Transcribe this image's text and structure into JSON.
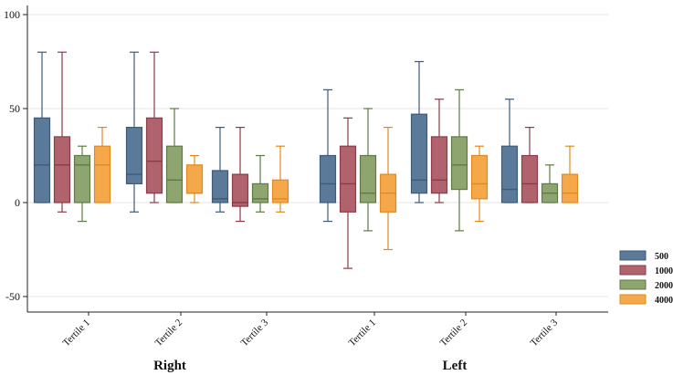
{
  "chart_data": {
    "type": "boxplot",
    "ylim": [
      -60,
      100
    ],
    "yticks": [
      -50,
      0,
      50,
      100
    ],
    "groups": [
      {
        "name": "Right",
        "categories": [
          "Tertile 1",
          "Tertile 2",
          "Tertile 3"
        ]
      },
      {
        "name": "Left",
        "categories": [
          "Tertile 1",
          "Tertile 2",
          "Tertile 3"
        ]
      }
    ],
    "series": [
      {
        "name": "500",
        "color": "#5b7a99",
        "stroke": "#3d5a7a",
        "values": [
          {
            "min": 0,
            "q1": 0,
            "median": 20,
            "q3": 45,
            "max": 80
          },
          {
            "min": -5,
            "q1": 10,
            "median": 15,
            "q3": 40,
            "max": 80
          },
          {
            "min": -5,
            "q1": 0,
            "median": 2,
            "q3": 17,
            "max": 40
          },
          {
            "min": -10,
            "q1": 0,
            "median": 10,
            "q3": 25,
            "max": 60
          },
          {
            "min": 0,
            "q1": 5,
            "median": 12,
            "q3": 47,
            "max": 75
          },
          {
            "min": 0,
            "q1": 0,
            "median": 7,
            "q3": 30,
            "max": 55
          }
        ]
      },
      {
        "name": "1000",
        "color": "#b0636d",
        "stroke": "#8c3b47",
        "values": [
          {
            "min": -5,
            "q1": 0,
            "median": 20,
            "q3": 35,
            "max": 80
          },
          {
            "min": 0,
            "q1": 5,
            "median": 22,
            "q3": 45,
            "max": 80
          },
          {
            "min": -10,
            "q1": -2,
            "median": 0,
            "q3": 15,
            "max": 40
          },
          {
            "min": -35,
            "q1": -5,
            "median": 10,
            "q3": 30,
            "max": 45
          },
          {
            "min": 0,
            "q1": 5,
            "median": 12,
            "q3": 35,
            "max": 55
          },
          {
            "min": 0,
            "q1": 0,
            "median": 10,
            "q3": 25,
            "max": 40
          }
        ]
      },
      {
        "name": "2000",
        "color": "#8ea56f",
        "stroke": "#5e7a45",
        "values": [
          {
            "min": -10,
            "q1": 0,
            "median": 20,
            "q3": 25,
            "max": 30
          },
          {
            "min": 0,
            "q1": 0,
            "median": 12,
            "q3": 30,
            "max": 50
          },
          {
            "min": -5,
            "q1": 0,
            "median": 2,
            "q3": 10,
            "max": 25
          },
          {
            "min": -15,
            "q1": 0,
            "median": 5,
            "q3": 25,
            "max": 50
          },
          {
            "min": -15,
            "q1": 7,
            "median": 20,
            "q3": 35,
            "max": 60
          },
          {
            "min": 0,
            "q1": 0,
            "median": 5,
            "q3": 10,
            "max": 20
          }
        ]
      },
      {
        "name": "4000",
        "color": "#f4a84a",
        "stroke": "#e08a1e",
        "values": [
          {
            "min": 0,
            "q1": 0,
            "median": 20,
            "q3": 30,
            "max": 40
          },
          {
            "min": 0,
            "q1": 5,
            "median": 5,
            "q3": 20,
            "max": 25
          },
          {
            "min": -5,
            "q1": 0,
            "median": 2,
            "q3": 12,
            "max": 30
          },
          {
            "min": -25,
            "q1": -5,
            "median": 5,
            "q3": 15,
            "max": 40
          },
          {
            "min": -10,
            "q1": 2,
            "median": 10,
            "q3": 25,
            "max": 30
          },
          {
            "min": 0,
            "q1": 0,
            "median": 5,
            "q3": 15,
            "max": 30
          }
        ]
      }
    ],
    "legend": [
      "500",
      "1000",
      "2000",
      "4000"
    ],
    "legend_position": "right-bottom",
    "grid": true
  }
}
